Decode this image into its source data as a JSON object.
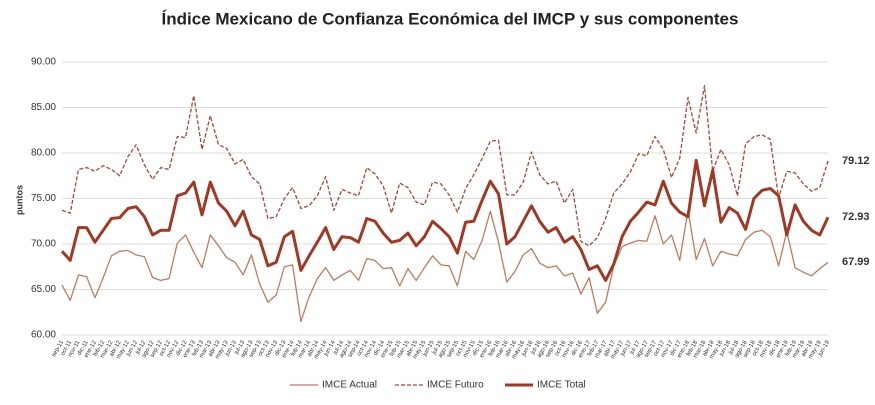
{
  "chart_data": {
    "type": "line",
    "title": "Índice Mexicano de Confianza Económica del IMCP y sus componentes",
    "y_label": "puntos",
    "categories": [
      "sep-11",
      "oct-11",
      "nov-11",
      "dic-11",
      "ene-12",
      "feb-12",
      "mar-12",
      "abr-12",
      "may-12",
      "jun-12",
      "jul-12",
      "ago-12",
      "sep-12",
      "oct-12",
      "nov-12",
      "dic-12",
      "ene-13",
      "feb-13",
      "mar-13",
      "abr-13",
      "may-13",
      "jun-13",
      "jul-13",
      "ago-13",
      "sep-13",
      "oct-13",
      "nov-13",
      "dic-13",
      "ene-14",
      "feb-14",
      "mar-14",
      "abr-14",
      "may-14",
      "jun-14",
      "jul-14",
      "ago-14",
      "sep-14",
      "oct-14",
      "nov-14",
      "dic-14",
      "ene-15",
      "feb-15",
      "mar-15",
      "abr-15",
      "may-15",
      "jun-15",
      "jul-15",
      "ago-15",
      "sep-15",
      "oct-15",
      "nov-15",
      "dic-15",
      "ene-16",
      "feb-16",
      "mar-16",
      "abr-16",
      "may-16",
      "jun-16",
      "jul-16",
      "ago-16",
      "sep-16",
      "oct-16",
      "nov-16",
      "dic-16",
      "ene-17",
      "feb-17",
      "mar-17",
      "abr-17",
      "may-17",
      "jun-17",
      "jul-17",
      "ago-17",
      "sep-17",
      "oct-17",
      "nov-17",
      "dic-17",
      "ene-18",
      "feb-18",
      "mar-18",
      "abr-18",
      "may-18",
      "jun-18",
      "jul-18",
      "ago-18",
      "sep-18",
      "oct-18",
      "nov-18",
      "dic-18",
      "ene-19",
      "feb-19",
      "mar-19",
      "abr-19",
      "may-19",
      "jun-19"
    ],
    "series": [
      {
        "name": "IMCE Actual",
        "color": "#c27a5c",
        "width": 1.3,
        "dash": false,
        "values": [
          65.5,
          63.8,
          66.6,
          66.4,
          64.1,
          66.3,
          68.7,
          69.2,
          69.3,
          68.8,
          68.6,
          66.3,
          66.0,
          66.2,
          70.1,
          71.0,
          69.1,
          67.4,
          71.0,
          69.8,
          68.5,
          68.0,
          66.6,
          68.8,
          65.6,
          63.6,
          64.4,
          67.5,
          67.7,
          61.5,
          64.2,
          66.2,
          67.4,
          66.0,
          66.6,
          67.1,
          66.0,
          68.4,
          68.2,
          67.3,
          67.4,
          65.4,
          67.3,
          66.0,
          67.4,
          68.7,
          67.7,
          67.6,
          65.4,
          69.2,
          68.3,
          70.4,
          73.6,
          70.2,
          65.8,
          67.0,
          68.8,
          69.5,
          67.9,
          67.4,
          67.6,
          66.5,
          66.8,
          64.5,
          66.3,
          62.4,
          63.6,
          67.6,
          69.7,
          70.1,
          70.4,
          70.3,
          73.1,
          70.0,
          71.0,
          68.2,
          73.7,
          68.3,
          70.6,
          67.6,
          69.2,
          68.9,
          68.7,
          70.5,
          71.3,
          71.5,
          70.8,
          67.6,
          71.4,
          67.4,
          66.9,
          66.5,
          67.3,
          67.99
        ]
      },
      {
        "name": "IMCE Futuro",
        "color": "#a8472f",
        "width": 1.3,
        "dash": true,
        "values": [
          73.7,
          73.4,
          78.2,
          78.4,
          78.0,
          78.6,
          78.2,
          77.5,
          79.6,
          80.9,
          78.7,
          77.1,
          78.4,
          78.2,
          81.8,
          81.7,
          86.3,
          80.4,
          84.1,
          80.9,
          80.5,
          78.8,
          79.3,
          77.4,
          76.6,
          72.8,
          73.0,
          75.0,
          76.2,
          73.9,
          74.2,
          75.3,
          77.4,
          73.7,
          76.0,
          75.6,
          75.3,
          78.4,
          77.7,
          76.4,
          73.4,
          76.7,
          76.2,
          74.6,
          74.3,
          76.8,
          76.6,
          75.4,
          73.5,
          76.1,
          77.6,
          79.4,
          81.3,
          81.4,
          75.4,
          75.4,
          76.8,
          80.1,
          77.6,
          76.6,
          76.9,
          74.5,
          76.0,
          70.3,
          69.8,
          70.7,
          72.8,
          75.6,
          76.6,
          77.9,
          79.9,
          79.7,
          81.8,
          80.4,
          77.3,
          79.4,
          86.1,
          82.2,
          87.4,
          78.0,
          80.4,
          78.7,
          75.3,
          81.0,
          81.8,
          82.0,
          81.5,
          75.1,
          78.0,
          77.8,
          76.6,
          75.8,
          76.2,
          79.12
        ]
      },
      {
        "name": "IMCE Total",
        "color": "#a33822",
        "width": 3,
        "dash": false,
        "values": [
          69.2,
          68.2,
          71.8,
          71.8,
          70.2,
          71.5,
          72.8,
          72.9,
          73.9,
          74.1,
          73.0,
          71.0,
          71.5,
          71.5,
          75.3,
          75.6,
          76.8,
          73.2,
          76.8,
          74.5,
          73.6,
          72.0,
          73.6,
          71.0,
          70.5,
          67.6,
          68.0,
          70.8,
          71.4,
          67.1,
          68.7,
          70.2,
          71.8,
          69.4,
          70.8,
          70.7,
          70.2,
          72.8,
          72.5,
          71.2,
          70.2,
          70.4,
          71.2,
          69.8,
          70.8,
          72.5,
          71.7,
          70.8,
          69.0,
          72.4,
          72.5,
          74.8,
          76.9,
          75.5,
          70.0,
          70.8,
          72.5,
          74.2,
          72.5,
          71.3,
          71.8,
          70.2,
          70.8,
          69.4,
          67.2,
          67.6,
          66.0,
          67.8,
          70.8,
          72.5,
          73.5,
          74.6,
          74.3,
          76.9,
          74.5,
          73.5,
          73.0,
          79.2,
          74.2,
          78.1,
          72.4,
          74.0,
          73.4,
          71.6,
          75.0,
          75.9,
          76.1,
          75.3,
          71.0,
          74.3,
          72.5,
          71.5,
          71.0,
          72.93
        ]
      }
    ],
    "ylim": [
      60,
      90
    ],
    "yticks": [
      {
        "value": 60,
        "label": "60.00"
      },
      {
        "value": 65,
        "label": "65.00"
      },
      {
        "value": 70,
        "label": "70.00"
      },
      {
        "value": 75,
        "label": "75.00"
      },
      {
        "value": 80,
        "label": "80.00"
      },
      {
        "value": 85,
        "label": "85.00"
      },
      {
        "value": 90,
        "label": "90.00"
      }
    ],
    "grid": true,
    "legend": "bottom"
  }
}
